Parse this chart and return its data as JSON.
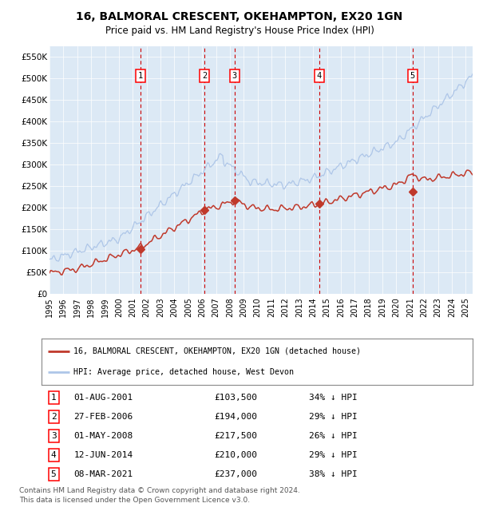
{
  "title": "16, BALMORAL CRESCENT, OKEHAMPTON, EX20 1GN",
  "subtitle": "Price paid vs. HM Land Registry's House Price Index (HPI)",
  "legend_line1": "16, BALMORAL CRESCENT, OKEHAMPTON, EX20 1GN (detached house)",
  "legend_line2": "HPI: Average price, detached house, West Devon",
  "footnote1": "Contains HM Land Registry data © Crown copyright and database right 2024.",
  "footnote2": "This data is licensed under the Open Government Licence v3.0.",
  "hpi_color": "#aec6e8",
  "price_color": "#c0392b",
  "dot_color": "#c0392b",
  "vline_color": "#cc0000",
  "background_color": "#dce9f5",
  "transactions": [
    {
      "num": 1,
      "date_x": 2001.58,
      "price": 103500,
      "label": "01-AUG-2001",
      "pct": "34%"
    },
    {
      "num": 2,
      "date_x": 2006.16,
      "price": 194000,
      "label": "27-FEB-2006",
      "pct": "29%"
    },
    {
      "num": 3,
      "date_x": 2008.33,
      "price": 217500,
      "label": "01-MAY-2008",
      "pct": "26%"
    },
    {
      "num": 4,
      "date_x": 2014.44,
      "price": 210000,
      "label": "12-JUN-2014",
      "pct": "29%"
    },
    {
      "num": 5,
      "date_x": 2021.18,
      "price": 237000,
      "label": "08-MAR-2021",
      "pct": "38%"
    }
  ],
  "ylim": [
    0,
    575000
  ],
  "xlim": [
    1995.0,
    2025.5
  ],
  "yticks": [
    0,
    50000,
    100000,
    150000,
    200000,
    250000,
    300000,
    350000,
    400000,
    450000,
    500000,
    550000
  ],
  "ytick_labels": [
    "£0",
    "£50K",
    "£100K",
    "£150K",
    "£200K",
    "£250K",
    "£300K",
    "£350K",
    "£400K",
    "£450K",
    "£500K",
    "£550K"
  ],
  "xtick_years": [
    1995,
    1996,
    1997,
    1998,
    1999,
    2000,
    2001,
    2002,
    2003,
    2004,
    2005,
    2006,
    2007,
    2008,
    2009,
    2010,
    2011,
    2012,
    2013,
    2014,
    2015,
    2016,
    2017,
    2018,
    2019,
    2020,
    2021,
    2022,
    2023,
    2024,
    2025
  ]
}
